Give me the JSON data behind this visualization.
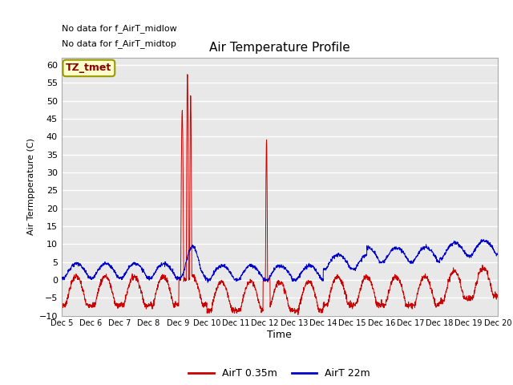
{
  "title": "Air Temperature Profile",
  "xlabel": "Time",
  "ylabel": "Air Termpperature (C)",
  "ylim": [
    -10,
    62
  ],
  "yticks": [
    -10,
    -5,
    0,
    5,
    10,
    15,
    20,
    25,
    30,
    35,
    40,
    45,
    50,
    55,
    60
  ],
  "bg_color": "#e8e8e8",
  "grid_color": "white",
  "red_color": "#cc0000",
  "blue_color": "#0000cc",
  "top_note1": "No data for f_AirT_midlow",
  "top_note2": "No data for f_AirT_midtop",
  "box_label": "TZ_tmet",
  "legend_red": "AirT 0.35m",
  "legend_blue": "AirT 22m",
  "xtick_labels": [
    "Dec 5",
    "Dec 6",
    "Dec 7",
    "Dec 8",
    "Dec 9",
    "Dec 10",
    "Dec 11",
    "Dec 12",
    "Dec 13",
    "Dec 14",
    "Dec 15",
    "Dec 16",
    "Dec 17",
    "Dec 18",
    "Dec 19",
    "Dec 20"
  ],
  "n_days": 15,
  "pts_per_day": 144
}
